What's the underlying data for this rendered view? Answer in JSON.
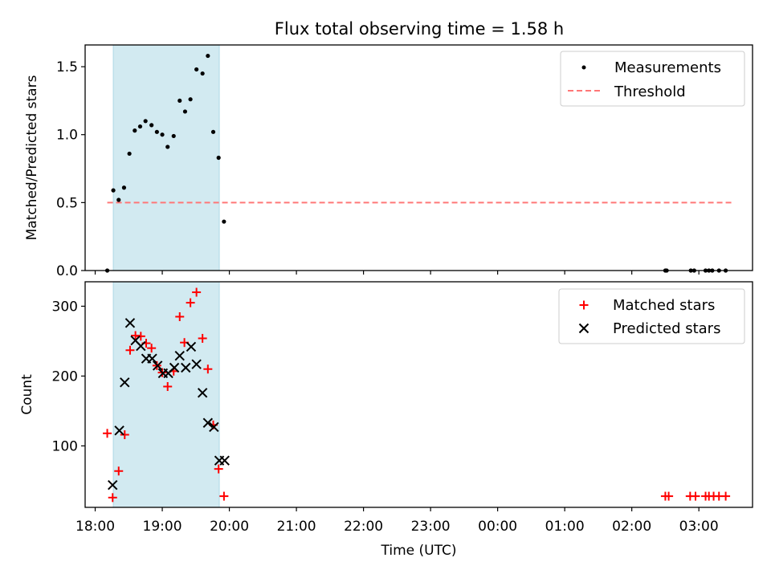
{
  "figure": {
    "title": "Flux total observing time = 1.58 h",
    "xlabel": "Time (UTC)",
    "xticks": [
      "18:00",
      "19:00",
      "20:00",
      "21:00",
      "22:00",
      "23:00",
      "00:00",
      "01:00",
      "02:00",
      "03:00"
    ],
    "observing_window_hours": [
      0.27,
      1.85
    ]
  },
  "chart_data": [
    {
      "type": "scatter",
      "name": "ratio-panel",
      "ylabel": "Matched/Predicted stars",
      "xlim_hours": [
        -0.15,
        9.8
      ],
      "ylim": [
        0,
        1.66
      ],
      "yticks": [
        "0.0",
        "0.5",
        "1.0",
        "1.5"
      ],
      "yvals": [
        0,
        0.5,
        1.0,
        1.5
      ],
      "legend_position": "upper-right",
      "legend": [
        "Measurements",
        "Threshold"
      ],
      "colors": {
        "measurements": "#000000",
        "threshold": "#ff7777",
        "window": "#add8e6"
      },
      "threshold": {
        "value": 0.5,
        "x_range_hours": [
          0.18,
          9.5
        ]
      },
      "series": [
        {
          "name": "Measurements",
          "x_hours": [
            0.18,
            0.27,
            0.35,
            0.43,
            0.51,
            0.59,
            0.67,
            0.75,
            0.84,
            0.92,
            1.0,
            1.08,
            1.17,
            1.26,
            1.34,
            1.42,
            1.51,
            1.6,
            1.68,
            1.76,
            1.84,
            1.92,
            8.5,
            8.52,
            8.88,
            8.93,
            9.1,
            9.15,
            9.2,
            9.3,
            9.4
          ],
          "y": [
            0.0,
            0.59,
            0.52,
            0.61,
            0.86,
            1.03,
            1.06,
            1.1,
            1.07,
            1.02,
            1.0,
            0.91,
            0.99,
            1.25,
            1.17,
            1.26,
            1.48,
            1.45,
            1.58,
            1.02,
            0.83,
            0.36,
            0.0,
            0.0,
            0.0,
            0.0,
            0.0,
            0.0,
            0.0,
            0.0,
            0.0
          ]
        }
      ]
    },
    {
      "type": "scatter",
      "name": "count-panel",
      "ylabel": "Count",
      "xlim_hours": [
        -0.15,
        9.8
      ],
      "ylim": [
        12,
        335
      ],
      "yticks": [
        "100",
        "200",
        "300"
      ],
      "yvals": [
        100,
        200,
        300
      ],
      "legend_position": "upper-right",
      "legend": [
        "Matched stars",
        "Predicted stars"
      ],
      "colors": {
        "matched": "#ff0000",
        "predicted": "#000000",
        "window": "#add8e6"
      },
      "series": [
        {
          "name": "Matched stars",
          "x_hours": [
            0.18,
            0.26,
            0.35,
            0.44,
            0.52,
            0.6,
            0.68,
            0.76,
            0.84,
            0.92,
            1.0,
            1.08,
            1.17,
            1.26,
            1.33,
            1.42,
            1.51,
            1.6,
            1.68,
            1.76,
            1.84,
            1.92,
            8.5,
            8.55,
            8.87,
            8.95,
            9.1,
            9.15,
            9.22,
            9.3,
            9.4
          ],
          "y": [
            118,
            26,
            64,
            116,
            237,
            258,
            257,
            247,
            240,
            215,
            205,
            185,
            207,
            285,
            248,
            305,
            320,
            254,
            210,
            130,
            67,
            28,
            28,
            28,
            28,
            28,
            28,
            28,
            28,
            28,
            28
          ]
        },
        {
          "name": "Predicted stars",
          "x_hours": [
            0.26,
            0.36,
            0.44,
            0.52,
            0.6,
            0.68,
            0.76,
            0.85,
            0.93,
            1.01,
            1.09,
            1.18,
            1.26,
            1.35,
            1.43,
            1.51,
            1.6,
            1.68,
            1.77,
            1.85,
            1.93
          ],
          "y": [
            44,
            122,
            191,
            276,
            251,
            243,
            225,
            225,
            215,
            204,
            204,
            212,
            229,
            212,
            242,
            217,
            176,
            133,
            127,
            79,
            79
          ]
        }
      ]
    }
  ]
}
